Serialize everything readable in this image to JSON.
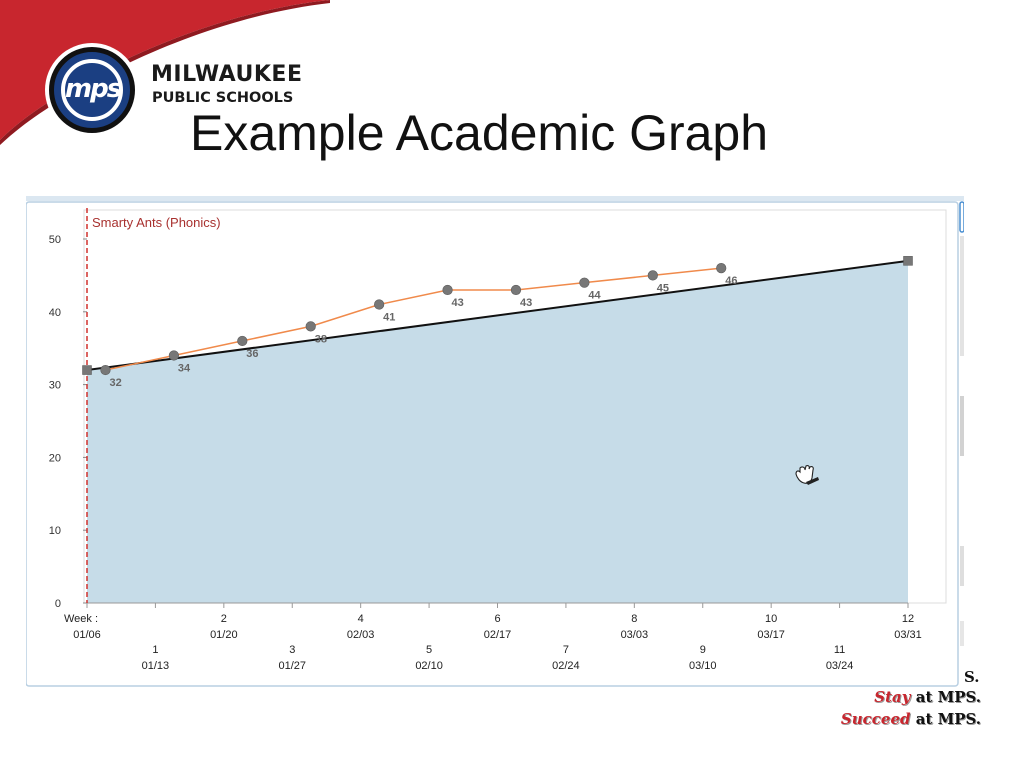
{
  "slide": {
    "title": "Example Academic Graph",
    "org_name_line1": "MILWAUKEE",
    "org_name_line2": "PUBLIC SCHOOLS",
    "logo_text": "mps",
    "tagline_partial": "S.",
    "tagline_stay_word": "Stay",
    "tagline_stay_rest": "at MPS.",
    "tagline_succeed_word": "Succeed",
    "tagline_succeed_rest": "at MPS.",
    "accent_red": "#c8262e",
    "logo_blue": "#1b3f82"
  },
  "chart_data": {
    "type": "line",
    "title": "Smarty Ants (Phonics)",
    "xlabel": "",
    "ylabel": "",
    "ylim": [
      0,
      50
    ],
    "yticks": [
      0,
      10,
      20,
      30,
      40,
      50
    ],
    "week_label": "Week :",
    "weeks": [
      {
        "week": "",
        "date": "01/06"
      },
      {
        "week": "1",
        "date": "01/13"
      },
      {
        "week": "2",
        "date": "01/20"
      },
      {
        "week": "3",
        "date": "01/27"
      },
      {
        "week": "4",
        "date": "02/03"
      },
      {
        "week": "5",
        "date": "02/10"
      },
      {
        "week": "6",
        "date": "02/17"
      },
      {
        "week": "7",
        "date": "02/24"
      },
      {
        "week": "8",
        "date": "03/03"
      },
      {
        "week": "9",
        "date": "03/10"
      },
      {
        "week": "10",
        "date": "03/17"
      },
      {
        "week": "11",
        "date": "03/24"
      },
      {
        "week": "12",
        "date": "03/31"
      }
    ],
    "series": [
      {
        "values": [
          {
            "week": 0.27,
            "score": 32,
            "label": "32"
          },
          {
            "week": 1.27,
            "score": 34,
            "label": "34"
          },
          {
            "week": 2.27,
            "score": 36,
            "label": "36"
          },
          {
            "week": 3.27,
            "score": 38,
            "label": "38"
          },
          {
            "week": 4.27,
            "score": 41,
            "label": "41"
          },
          {
            "week": 5.27,
            "score": 43,
            "label": "43"
          },
          {
            "week": 6.27,
            "score": 43,
            "label": "43"
          },
          {
            "week": 7.27,
            "score": 44,
            "label": "44"
          },
          {
            "week": 8.27,
            "score": 45,
            "label": "45"
          },
          {
            "week": 9.27,
            "score": 46,
            "label": "46"
          }
        ],
        "color": "#f08a4b"
      },
      {
        "values": [
          {
            "week": 0,
            "score": 32
          },
          {
            "week": 12,
            "score": 47
          }
        ],
        "color": "#111111"
      }
    ],
    "area_fill_color": "#c6dce8",
    "start_marker_color": "#d0312d",
    "grid": false,
    "legend": "none"
  }
}
